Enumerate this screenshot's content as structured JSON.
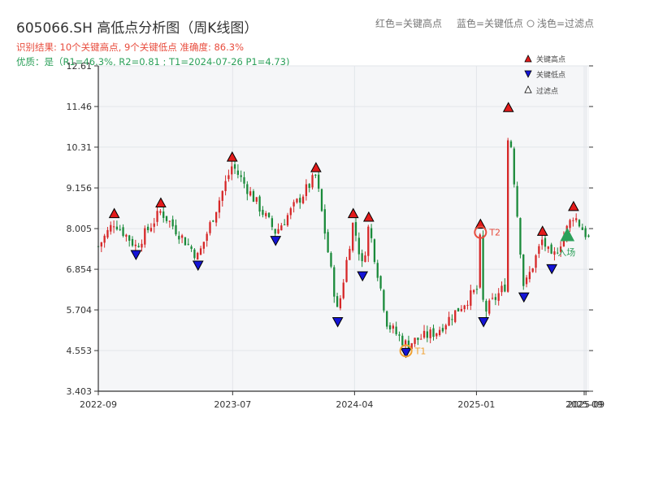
{
  "chart_data": {
    "type": "candlestick",
    "title": "605066.SH 高低点分析图（周K线图）",
    "subtitle_result": "识别结果: 10个关键高点, 9个关键低点 准确度: 86.3%",
    "subtitle_quality": "优质：是（R1=46.3%, R2=0.81 ; T1=2024-07-26 P1=4.73)",
    "top_legend": [
      "红色=关键高点",
      "蓝色=关键低点",
      "浅色=过滤点"
    ],
    "mini_legend": [
      "关键高点",
      "关键低点",
      "过滤点"
    ],
    "ylim": [
      3.403,
      12.61
    ],
    "y_ticks": [
      "3.403",
      "4.553",
      "5.704",
      "6.854",
      "8.005",
      "9.156",
      "10.31",
      "11.46",
      "12.61"
    ],
    "x_ticks": [
      {
        "label": "2022-09",
        "date": "2022-09-01"
      },
      {
        "label": "2023-07",
        "date": "2023-07-01"
      },
      {
        "label": "2024-04",
        "date": "2024-04-01"
      },
      {
        "label": "2025-01",
        "date": "2025-01-01"
      },
      {
        "label": "2025-09",
        "date": "2025-09-01"
      },
      {
        "label": "2025-09",
        "date": "2025-09-05"
      }
    ],
    "x_range": [
      "2022-09-01",
      "2025-09-12"
    ],
    "anchors": [
      {
        "date": "2022-09-01",
        "price": 7.5
      },
      {
        "date": "2022-10-07",
        "price": 8.2
      },
      {
        "date": "2022-11-25",
        "price": 7.5
      },
      {
        "date": "2023-01-20",
        "price": 8.5
      },
      {
        "date": "2023-04-14",
        "price": 7.2
      },
      {
        "date": "2023-06-30",
        "price": 9.8
      },
      {
        "date": "2023-10-06",
        "price": 7.9
      },
      {
        "date": "2024-01-05",
        "price": 9.5
      },
      {
        "date": "2024-02-23",
        "price": 5.6
      },
      {
        "date": "2024-03-29",
        "price": 8.2
      },
      {
        "date": "2024-04-19",
        "price": 6.9
      },
      {
        "date": "2024-05-03",
        "price": 8.1
      },
      {
        "date": "2024-06-14",
        "price": 5.3
      },
      {
        "date": "2024-07-26",
        "price": 4.73
      },
      {
        "date": "2024-10-04",
        "price": 5.1
      },
      {
        "date": "2025-01-03",
        "price": 6.3
      },
      {
        "date": "2025-01-10",
        "price": 7.9
      },
      {
        "date": "2025-01-17",
        "price": 5.6
      },
      {
        "date": "2025-03-07",
        "price": 6.4
      },
      {
        "date": "2025-03-14",
        "price": 11.2
      },
      {
        "date": "2025-04-18",
        "price": 6.3
      },
      {
        "date": "2025-05-30",
        "price": 7.7
      },
      {
        "date": "2025-06-20",
        "price": 7.1
      },
      {
        "date": "2025-08-08",
        "price": 8.4
      },
      {
        "date": "2025-09-12",
        "price": 7.7
      }
    ],
    "key_highs": [
      {
        "date": "2022-10-07",
        "price": 8.2
      },
      {
        "date": "2023-01-20",
        "price": 8.5
      },
      {
        "date": "2023-06-30",
        "price": 9.8
      },
      {
        "date": "2024-01-05",
        "price": 9.5
      },
      {
        "date": "2024-03-29",
        "price": 8.2
      },
      {
        "date": "2024-05-03",
        "price": 8.1
      },
      {
        "date": "2025-01-10",
        "price": 7.9
      },
      {
        "date": "2025-03-14",
        "price": 11.2
      },
      {
        "date": "2025-05-30",
        "price": 7.7
      },
      {
        "date": "2025-08-08",
        "price": 8.4
      }
    ],
    "key_lows": [
      {
        "date": "2022-11-25",
        "price": 7.5
      },
      {
        "date": "2023-04-14",
        "price": 7.2
      },
      {
        "date": "2023-10-06",
        "price": 7.9
      },
      {
        "date": "2024-02-23",
        "price": 5.6
      },
      {
        "date": "2024-04-19",
        "price": 6.9
      },
      {
        "date": "2024-07-26",
        "price": 4.73
      },
      {
        "date": "2025-01-17",
        "price": 5.6
      },
      {
        "date": "2025-04-18",
        "price": 6.3
      },
      {
        "date": "2025-06-20",
        "price": 7.1
      }
    ],
    "annotations": [
      {
        "label": "T1",
        "date": "2024-07-26",
        "price": 4.73
      },
      {
        "label": "T2",
        "date": "2025-01-10",
        "price": 7.9
      },
      {
        "label": "入场",
        "date": "2025-07-25",
        "price": 7.8
      }
    ],
    "colors": {
      "up": "#d62728",
      "down": "#1a8a3a",
      "high_marker": "#e31b1b",
      "low_marker": "#1414d6",
      "t1": "#f0a030",
      "t2": "#e84c3d",
      "entry": "#2ca05a",
      "result_text": "#e84c3d",
      "quality_text": "#2ca05a",
      "plot_bg": "#f5f6f8"
    }
  }
}
